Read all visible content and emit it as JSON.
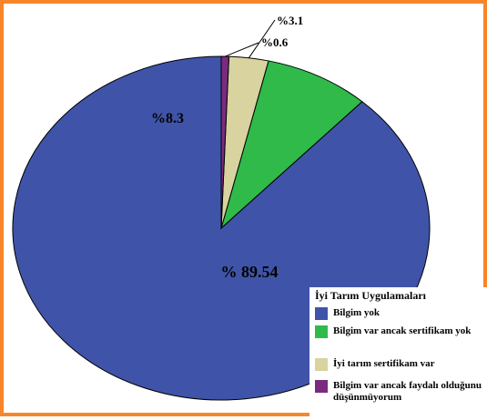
{
  "chart_data": {
    "type": "pie",
    "title": "",
    "legend_title": "İyi Tarım Uygulamaları",
    "legend_position": "bottom-right",
    "start_angle_deg": 0,
    "direction": "counterclockwise",
    "slices": [
      {
        "label": "Bilgim yok",
        "value": 89.54,
        "display": "% 89.54",
        "color": "#3f54a8"
      },
      {
        "label": "Bilgim var ancak sertifikam yok",
        "value": 8.3,
        "display": "%8.3",
        "color": "#2fba4a"
      },
      {
        "label": "İyi tarım sertifikam var",
        "value": 3.1,
        "display": "%3.1",
        "color": "#d8d39f"
      },
      {
        "label": "Bilgim var ancak faydalı olduğunu düşünmüyorum",
        "value": 0.6,
        "display": "%0.6",
        "color": "#7a2b7f"
      }
    ]
  },
  "colors": {
    "frame_border": "#f7862b",
    "slice_edge": "#000000"
  }
}
